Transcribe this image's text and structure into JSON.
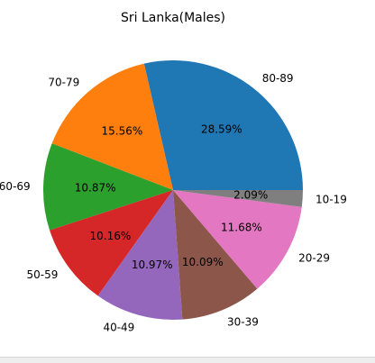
{
  "chart_data": {
    "type": "pie",
    "title": "Sri Lanka(Males)",
    "start_angle_deg": 0,
    "direction": "counterclockwise",
    "slices": [
      {
        "label": "80-89",
        "value": 28.59,
        "pct_text": "28.59%",
        "color": "#1f77b4"
      },
      {
        "label": "70-79",
        "value": 15.56,
        "pct_text": "15.56%",
        "color": "#ff7f0e"
      },
      {
        "label": "60-69",
        "value": 10.87,
        "pct_text": "10.87%",
        "color": "#2ca02c"
      },
      {
        "label": "50-59",
        "value": 10.16,
        "pct_text": "10.16%",
        "color": "#d62728"
      },
      {
        "label": "40-49",
        "value": 10.97,
        "pct_text": "10.97%",
        "color": "#9467bd"
      },
      {
        "label": "30-39",
        "value": 10.09,
        "pct_text": "10.09%",
        "color": "#8c564b"
      },
      {
        "label": "20-29",
        "value": 11.68,
        "pct_text": "11.68%",
        "color": "#e377c2"
      },
      {
        "label": "10-19",
        "value": 2.09,
        "pct_text": "2.09%",
        "color": "#7f7f7f"
      }
    ]
  }
}
